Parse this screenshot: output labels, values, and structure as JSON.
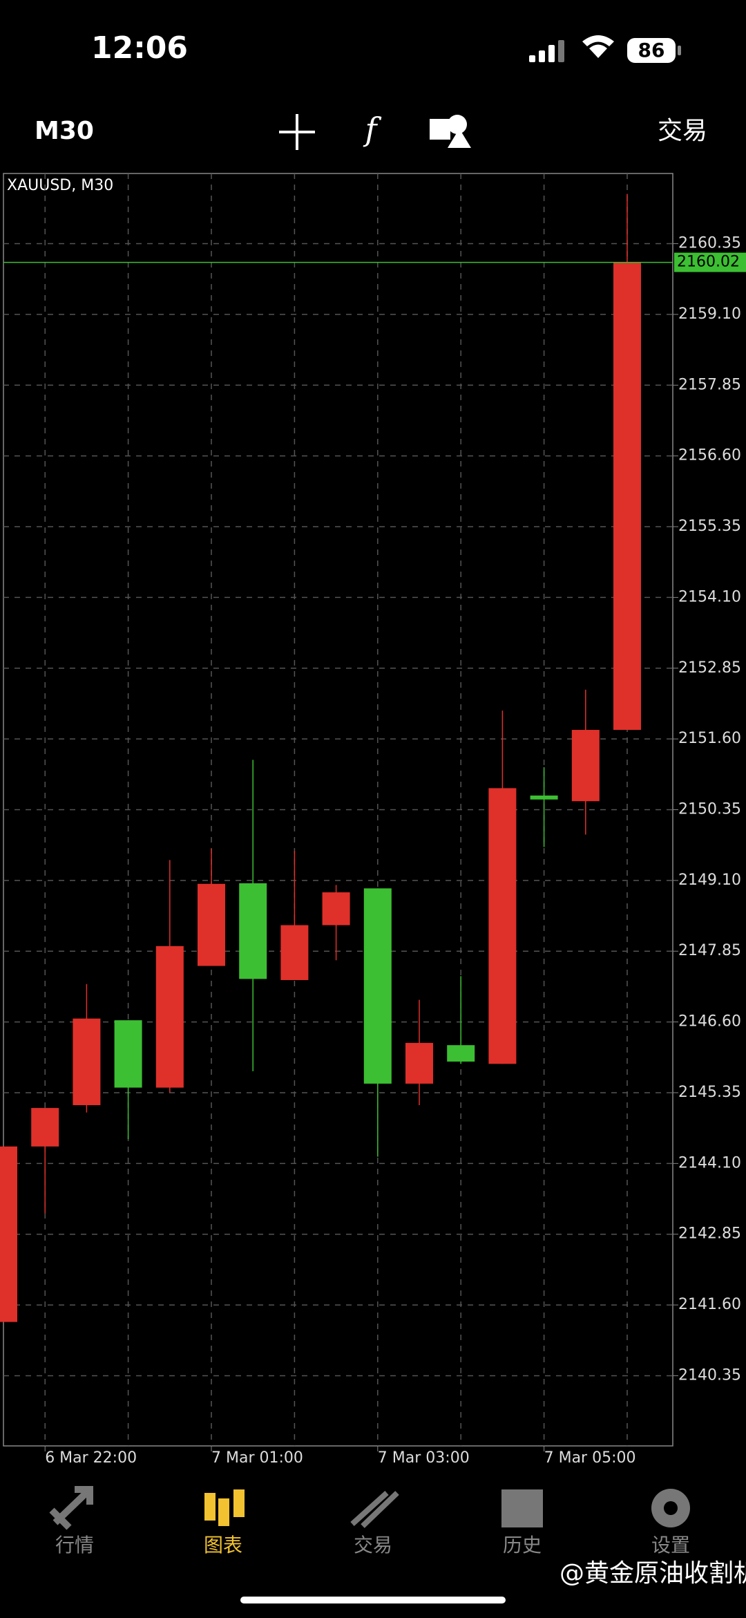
{
  "status_bar": {
    "time": "12:06",
    "battery": "86"
  },
  "toolbar": {
    "timeframe": "M30",
    "trade": "交易"
  },
  "chart_data": {
    "type": "candlestick",
    "title": "XAUUSD, M30",
    "categories": [
      null,
      "6 Mar 22:00",
      null,
      null,
      null,
      "7 Mar 01:00",
      null,
      null,
      null,
      "7 Mar 03:00",
      null,
      null,
      null,
      "7 Mar 05:00",
      null,
      null
    ],
    "open": [
      2141.3,
      2144.4,
      2145.13,
      2146.63,
      2145.44,
      2147.59,
      2149.05,
      2147.34,
      2148.31,
      2148.96,
      2145.51,
      2146.19,
      2145.86,
      2150.6,
      2150.5,
      2151.76
    ],
    "high": [
      2144.4,
      2145.08,
      2147.27,
      2146.63,
      2149.46,
      2149.66,
      2151.23,
      2149.62,
      2149.02,
      2148.96,
      2146.99,
      2147.41,
      2152.1,
      2151.1,
      2152.47,
      2161.23
    ],
    "low": [
      2141.3,
      2143.22,
      2145.0,
      2144.53,
      2145.35,
      2147.59,
      2145.73,
      2147.34,
      2147.69,
      2144.22,
      2145.13,
      2145.86,
      2145.86,
      2149.69,
      2149.91,
      2151.76
    ],
    "close": [
      2144.4,
      2145.08,
      2146.66,
      2145.44,
      2147.94,
      2149.04,
      2147.36,
      2148.31,
      2148.89,
      2145.51,
      2146.23,
      2145.9,
      2150.73,
      2150.53,
      2151.76,
      2160.02
    ],
    "up_color": "#e0302a",
    "down_color": "#3cbf32",
    "ylim": [
      2139.11,
      2161.59
    ],
    "yticks": [
      2140.35,
      {
        "value": 2141.6,
        "label": "2141.60"
      },
      2142.85,
      {
        "value": 2144.1,
        "label": "2144.10"
      },
      2145.35,
      {
        "value": 2146.6,
        "label": "2146.60"
      },
      2147.85,
      {
        "value": 2149.1,
        "label": "2149.10"
      },
      2150.35,
      {
        "value": 2151.6,
        "label": "2151.60"
      },
      2152.85,
      {
        "value": 2154.1,
        "label": "2154.10"
      },
      2155.35,
      {
        "value": 2156.6,
        "label": "2156.60"
      },
      2157.85,
      {
        "value": 2159.1,
        "label": "2159.10"
      },
      2160.35
    ],
    "last_price": 2160.02,
    "grid": true
  },
  "tab_bar": {
    "tabs": [
      "行情",
      "图表",
      "交易",
      "历史",
      "设置"
    ],
    "active": 1
  },
  "watermark": "@黄金原油收割机"
}
